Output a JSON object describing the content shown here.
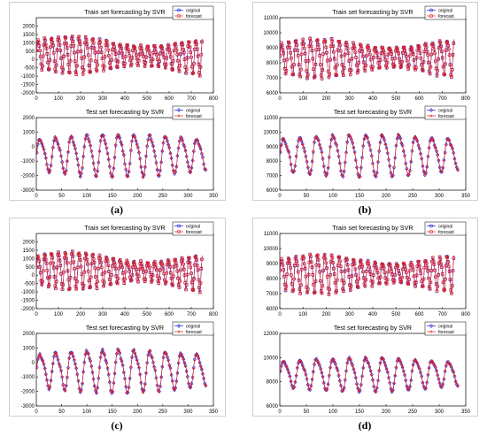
{
  "colors": {
    "original": "#2020e0",
    "forecast": "#e02020",
    "axis": "#000000",
    "figure_bg": "#e9e9e9"
  },
  "panels": [
    {
      "caption": "(a)",
      "charts": [
        {
          "type": "line",
          "title": "Train set forecasting by SVR",
          "xlim": [
            0,
            800
          ],
          "ylim": [
            -2000,
            2500
          ],
          "xticks": [
            0,
            100,
            200,
            300,
            400,
            500,
            600,
            700,
            800
          ],
          "yticks": [
            -2000,
            -1500,
            -1000,
            -500,
            0,
            500,
            1000,
            1500,
            2000
          ],
          "n": 750,
          "period": 31,
          "center": 400,
          "amp": 1300,
          "drift": -200,
          "series": [
            {
              "name": "original",
              "marker": "circle"
            },
            {
              "name": "forecast",
              "marker": "square"
            }
          ]
        },
        {
          "type": "line",
          "title": "Test set forecasting by SVR",
          "xlim": [
            0,
            350
          ],
          "ylim": [
            -3000,
            2000
          ],
          "xticks": [
            0,
            50,
            100,
            150,
            200,
            250,
            300,
            350
          ],
          "yticks": [
            -3000,
            -2000,
            -1000,
            0,
            1000,
            2000
          ],
          "n": 335,
          "period": 31,
          "center": -500,
          "amp": 1700,
          "drift": 0,
          "series": [
            {
              "name": "original",
              "marker": "diamond"
            },
            {
              "name": "forecast",
              "marker": "star"
            }
          ]
        }
      ]
    },
    {
      "caption": "(b)",
      "charts": [
        {
          "type": "line",
          "title": "Train set forecasting by SVR",
          "xlim": [
            0,
            800
          ],
          "ylim": [
            6000,
            11000
          ],
          "xticks": [
            0,
            100,
            200,
            300,
            400,
            500,
            600,
            700,
            800
          ],
          "yticks": [
            6000,
            7000,
            8000,
            9000,
            10000,
            11000
          ],
          "n": 750,
          "period": 31,
          "center": 8400,
          "amp": 1500,
          "drift": 0,
          "series": [
            {
              "name": "original",
              "marker": "circle"
            },
            {
              "name": "forecast",
              "marker": "square"
            }
          ]
        },
        {
          "type": "line",
          "title": "Test set forecasting by SVR",
          "xlim": [
            0,
            350
          ],
          "ylim": [
            6000,
            11000
          ],
          "xticks": [
            0,
            50,
            100,
            150,
            200,
            250,
            300,
            350
          ],
          "yticks": [
            6000,
            7000,
            8000,
            9000,
            10000,
            11000
          ],
          "n": 335,
          "period": 31,
          "center": 8500,
          "amp": 1700,
          "drift": 0,
          "series": [
            {
              "name": "original",
              "marker": "diamond"
            },
            {
              "name": "forecast",
              "marker": "star"
            }
          ]
        }
      ]
    },
    {
      "caption": "(c)",
      "charts": [
        {
          "type": "line",
          "title": "Train set forecasting by SVR",
          "xlim": [
            0,
            800
          ],
          "ylim": [
            -2000,
            2500
          ],
          "xticks": [
            0,
            100,
            200,
            300,
            400,
            500,
            600,
            700,
            800
          ],
          "yticks": [
            -2000,
            -1500,
            -1000,
            -500,
            0,
            500,
            1000,
            1500,
            2000
          ],
          "n": 750,
          "period": 31,
          "center": 400,
          "amp": 1300,
          "drift": -200,
          "series": [
            {
              "name": "original",
              "marker": "circle"
            },
            {
              "name": "forecast",
              "marker": "square"
            }
          ]
        },
        {
          "type": "line",
          "title": "Test set forecasting by SVR",
          "xlim": [
            0,
            350
          ],
          "ylim": [
            -3000,
            2000
          ],
          "xticks": [
            0,
            50,
            100,
            150,
            200,
            250,
            300,
            350
          ],
          "yticks": [
            -3000,
            -2000,
            -1000,
            0,
            1000,
            2000
          ],
          "n": 335,
          "period": 31,
          "center": -500,
          "amp": 1700,
          "drift": 0,
          "series": [
            {
              "name": "original",
              "marker": "diamond"
            },
            {
              "name": "forecast",
              "marker": "star"
            }
          ]
        }
      ]
    },
    {
      "caption": "(d)",
      "charts": [
        {
          "type": "line",
          "title": "Train set forecasting by SVR",
          "xlim": [
            0,
            800
          ],
          "ylim": [
            6000,
            11000
          ],
          "xticks": [
            0,
            100,
            200,
            300,
            400,
            500,
            600,
            700,
            800
          ],
          "yticks": [
            6000,
            7000,
            8000,
            9000,
            10000,
            11000
          ],
          "n": 750,
          "period": 31,
          "center": 8400,
          "amp": 1500,
          "drift": 0,
          "series": [
            {
              "name": "original",
              "marker": "circle"
            },
            {
              "name": "forecast",
              "marker": "square"
            }
          ]
        },
        {
          "type": "line",
          "title": "Test set forecasting by SVR",
          "xlim": [
            0,
            350
          ],
          "ylim": [
            6000,
            12000
          ],
          "xticks": [
            0,
            50,
            100,
            150,
            200,
            250,
            300,
            350
          ],
          "yticks": [
            6000,
            8000,
            10000,
            12000
          ],
          "n": 335,
          "period": 31,
          "center": 8700,
          "amp": 1600,
          "drift": 0,
          "series": [
            {
              "name": "original",
              "marker": "diamond"
            },
            {
              "name": "forecast",
              "marker": "star"
            }
          ]
        }
      ]
    }
  ]
}
